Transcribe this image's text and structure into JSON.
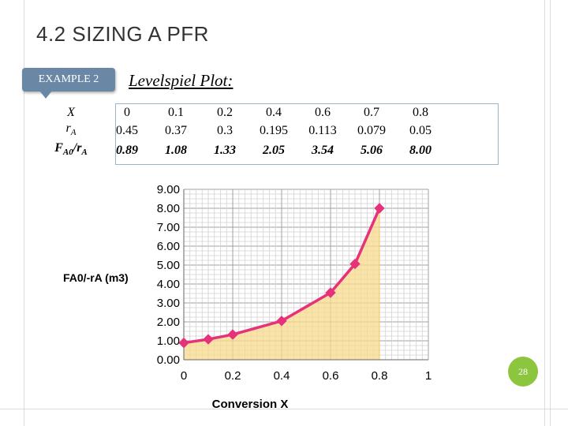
{
  "slide": {
    "title": "4.2 SIZING A PFR",
    "callout": "EXAMPLE 2",
    "heading": "Levelspiel Plot:",
    "page_number": "28"
  },
  "table": {
    "row_labels": [
      "X",
      "rA",
      "FA0/rA"
    ],
    "X": [
      "0",
      "0.1",
      "0.2",
      "0.4",
      "0.6",
      "0.7",
      "0.8"
    ],
    "rA": [
      "0.45",
      "0.37",
      "0.3",
      "0.195",
      "0.113",
      "0.079",
      "0.05"
    ],
    "FA0_rA": [
      "0.89",
      "1.08",
      "1.33",
      "2.05",
      "3.54",
      "5.06",
      "8.00"
    ]
  },
  "chart_data": {
    "type": "area",
    "title": "",
    "xlabel": "Conversion  X",
    "ylabel": "FA0/-rA (m3)",
    "xlim": [
      0,
      1
    ],
    "ylim": [
      0,
      9
    ],
    "x_ticks": [
      "0",
      "0.2",
      "0.4",
      "0.6",
      "0.8",
      "1"
    ],
    "y_ticks": [
      "0.00",
      "1.00",
      "2.00",
      "3.00",
      "4.00",
      "5.00",
      "6.00",
      "7.00",
      "8.00",
      "9.00"
    ],
    "grid": true,
    "series": [
      {
        "name": "FA0/-rA",
        "x": [
          0,
          0.1,
          0.2,
          0.4,
          0.6,
          0.7,
          0.8
        ],
        "values": [
          0.89,
          1.08,
          1.33,
          2.05,
          3.54,
          5.06,
          8.0
        ],
        "color": "#e6327a",
        "fill": "#f7d98c"
      }
    ]
  },
  "colors": {
    "accent": "#6a88a6",
    "table_border": "#9bb3cc",
    "page_badge": "#8cc63f"
  }
}
